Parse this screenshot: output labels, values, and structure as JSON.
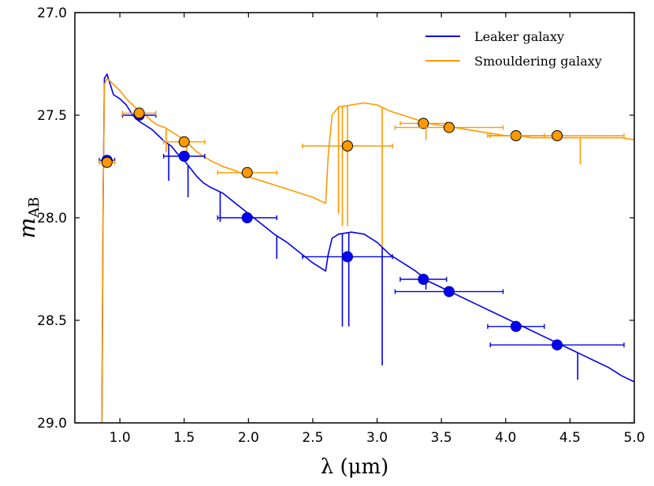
{
  "chart_data": {
    "type": "line",
    "title": "",
    "xlabel": "λ (μm)",
    "ylabel": "m_AB",
    "ylabel_main": "m",
    "ylabel_sub": "AB",
    "xlim": [
      0.65,
      5.0
    ],
    "ylim": [
      29.0,
      27.0
    ],
    "y_inverted": true,
    "grid": false,
    "legend_position": "top-right",
    "x_ticks": [
      1.0,
      1.5,
      2.0,
      2.5,
      3.0,
      3.5,
      4.0,
      4.5,
      5.0
    ],
    "x_tick_labels": [
      "1.0",
      "1.5",
      "2.0",
      "2.5",
      "3.0",
      "3.5",
      "4.0",
      "4.5",
      "5.0"
    ],
    "y_ticks": [
      27.0,
      27.5,
      28.0,
      28.5,
      29.0
    ],
    "y_tick_labels": [
      "27.0",
      "27.5",
      "28.0",
      "28.5",
      "29.0"
    ],
    "series": [
      {
        "name": "Leaker galaxy",
        "color": "#0000ee",
        "spectrum": [
          [
            0.86,
            29.0
          ],
          [
            0.87,
            27.9
          ],
          [
            0.88,
            27.32
          ],
          [
            0.9,
            27.3
          ],
          [
            0.95,
            27.4
          ],
          [
            1.0,
            27.42
          ],
          [
            1.05,
            27.45
          ],
          [
            1.1,
            27.5
          ],
          [
            1.15,
            27.53
          ],
          [
            1.2,
            27.55
          ],
          [
            1.25,
            27.57
          ],
          [
            1.3,
            27.6
          ],
          [
            1.35,
            27.63
          ],
          [
            1.4,
            27.65
          ],
          [
            1.45,
            27.69
          ],
          [
            1.5,
            27.72
          ],
          [
            1.55,
            27.76
          ],
          [
            1.6,
            27.8
          ],
          [
            1.65,
            27.83
          ],
          [
            1.7,
            27.85
          ],
          [
            1.8,
            27.88
          ],
          [
            1.9,
            27.93
          ],
          [
            2.0,
            27.98
          ],
          [
            2.1,
            28.03
          ],
          [
            2.2,
            28.08
          ],
          [
            2.3,
            28.12
          ],
          [
            2.4,
            28.17
          ],
          [
            2.5,
            28.22
          ],
          [
            2.6,
            28.26
          ],
          [
            2.62,
            28.18
          ],
          [
            2.65,
            28.1
          ],
          [
            2.7,
            28.08
          ],
          [
            2.8,
            28.07
          ],
          [
            2.9,
            28.08
          ],
          [
            3.0,
            28.12
          ],
          [
            3.1,
            28.18
          ],
          [
            3.2,
            28.22
          ],
          [
            3.3,
            28.26
          ],
          [
            3.4,
            28.31
          ],
          [
            3.5,
            28.34
          ],
          [
            3.6,
            28.37
          ],
          [
            3.7,
            28.4
          ],
          [
            3.8,
            28.43
          ],
          [
            3.9,
            28.46
          ],
          [
            4.0,
            28.49
          ],
          [
            4.1,
            28.52
          ],
          [
            4.2,
            28.55
          ],
          [
            4.3,
            28.58
          ],
          [
            4.4,
            28.61
          ],
          [
            4.5,
            28.64
          ],
          [
            4.6,
            28.67
          ],
          [
            4.7,
            28.7
          ],
          [
            4.8,
            28.73
          ],
          [
            4.9,
            28.77
          ],
          [
            5.0,
            28.8
          ]
        ],
        "dips": [
          [
            1.38,
            27.82
          ],
          [
            1.53,
            27.9
          ],
          [
            1.78,
            28.02
          ],
          [
            2.22,
            28.2
          ],
          [
            2.73,
            28.53
          ],
          [
            2.78,
            28.53
          ],
          [
            3.04,
            28.72
          ],
          [
            3.38,
            28.35
          ],
          [
            4.56,
            28.79
          ]
        ],
        "photometry": [
          {
            "x": 0.9,
            "y": 27.72,
            "xerr": 0.06,
            "yerr": 0.0
          },
          {
            "x": 1.15,
            "y": 27.5,
            "xerr": 0.13,
            "yerr": 0.0
          },
          {
            "x": 1.5,
            "y": 27.7,
            "xerr": 0.16,
            "yerr": 0.0
          },
          {
            "x": 1.99,
            "y": 28.0,
            "xerr": 0.23,
            "yerr": 0.0
          },
          {
            "x": 2.77,
            "y": 28.19,
            "xerr": 0.35,
            "yerr": 0.0
          },
          {
            "x": 3.36,
            "y": 28.3,
            "xerr": 0.18,
            "yerr": 0.0
          },
          {
            "x": 3.56,
            "y": 28.36,
            "xerr": 0.42,
            "yerr": 0.0
          },
          {
            "x": 4.08,
            "y": 28.53,
            "xerr": 0.22,
            "yerr": 0.0
          },
          {
            "x": 4.4,
            "y": 28.62,
            "xerr": 0.52,
            "yerr": 0.0
          }
        ]
      },
      {
        "name": "Smouldering galaxy",
        "color": "#ff9900",
        "spectrum": [
          [
            0.86,
            29.0
          ],
          [
            0.87,
            27.9
          ],
          [
            0.88,
            27.35
          ],
          [
            0.9,
            27.32
          ],
          [
            0.95,
            27.35
          ],
          [
            1.0,
            27.38
          ],
          [
            1.05,
            27.42
          ],
          [
            1.1,
            27.45
          ],
          [
            1.15,
            27.48
          ],
          [
            1.2,
            27.5
          ],
          [
            1.25,
            27.53
          ],
          [
            1.3,
            27.55
          ],
          [
            1.35,
            27.56
          ],
          [
            1.4,
            27.58
          ],
          [
            1.45,
            27.6
          ],
          [
            1.5,
            27.62
          ],
          [
            1.55,
            27.65
          ],
          [
            1.6,
            27.68
          ],
          [
            1.7,
            27.72
          ],
          [
            1.8,
            27.75
          ],
          [
            1.9,
            27.77
          ],
          [
            2.0,
            27.8
          ],
          [
            2.1,
            27.82
          ],
          [
            2.2,
            27.84
          ],
          [
            2.3,
            27.86
          ],
          [
            2.4,
            27.88
          ],
          [
            2.5,
            27.9
          ],
          [
            2.6,
            27.93
          ],
          [
            2.62,
            27.7
          ],
          [
            2.65,
            27.5
          ],
          [
            2.7,
            27.46
          ],
          [
            2.8,
            27.45
          ],
          [
            2.9,
            27.44
          ],
          [
            3.0,
            27.45
          ],
          [
            3.1,
            27.48
          ],
          [
            3.2,
            27.5
          ],
          [
            3.3,
            27.52
          ],
          [
            3.4,
            27.54
          ],
          [
            3.5,
            27.55
          ],
          [
            3.6,
            27.56
          ],
          [
            3.7,
            27.57
          ],
          [
            3.8,
            27.58
          ],
          [
            3.9,
            27.59
          ],
          [
            4.0,
            27.6
          ],
          [
            4.1,
            27.6
          ],
          [
            4.2,
            27.61
          ],
          [
            4.3,
            27.61
          ],
          [
            4.4,
            27.61
          ],
          [
            4.5,
            27.61
          ],
          [
            4.6,
            27.61
          ],
          [
            4.7,
            27.61
          ],
          [
            4.8,
            27.61
          ],
          [
            4.9,
            27.61
          ],
          [
            5.0,
            27.62
          ]
        ],
        "dips": [
          [
            1.36,
            27.68
          ],
          [
            1.52,
            27.72
          ],
          [
            2.7,
            27.98
          ],
          [
            2.73,
            28.04
          ],
          [
            2.77,
            28.04
          ],
          [
            3.04,
            28.14
          ],
          [
            3.38,
            27.62
          ],
          [
            4.58,
            27.74
          ]
        ],
        "photometry": [
          {
            "x": 0.9,
            "y": 27.73,
            "xerr": 0.06,
            "yerr": 0.0
          },
          {
            "x": 1.15,
            "y": 27.49,
            "xerr": 0.13,
            "yerr": 0.0
          },
          {
            "x": 1.5,
            "y": 27.63,
            "xerr": 0.16,
            "yerr": 0.0
          },
          {
            "x": 1.99,
            "y": 27.78,
            "xerr": 0.23,
            "yerr": 0.0
          },
          {
            "x": 2.77,
            "y": 27.65,
            "xerr": 0.35,
            "yerr": 0.0
          },
          {
            "x": 3.36,
            "y": 27.54,
            "xerr": 0.18,
            "yerr": 0.0
          },
          {
            "x": 3.56,
            "y": 27.56,
            "xerr": 0.42,
            "yerr": 0.0
          },
          {
            "x": 4.08,
            "y": 27.6,
            "xerr": 0.22,
            "yerr": 0.0
          },
          {
            "x": 4.4,
            "y": 27.6,
            "xerr": 0.52,
            "yerr": 0.0
          }
        ]
      }
    ]
  }
}
